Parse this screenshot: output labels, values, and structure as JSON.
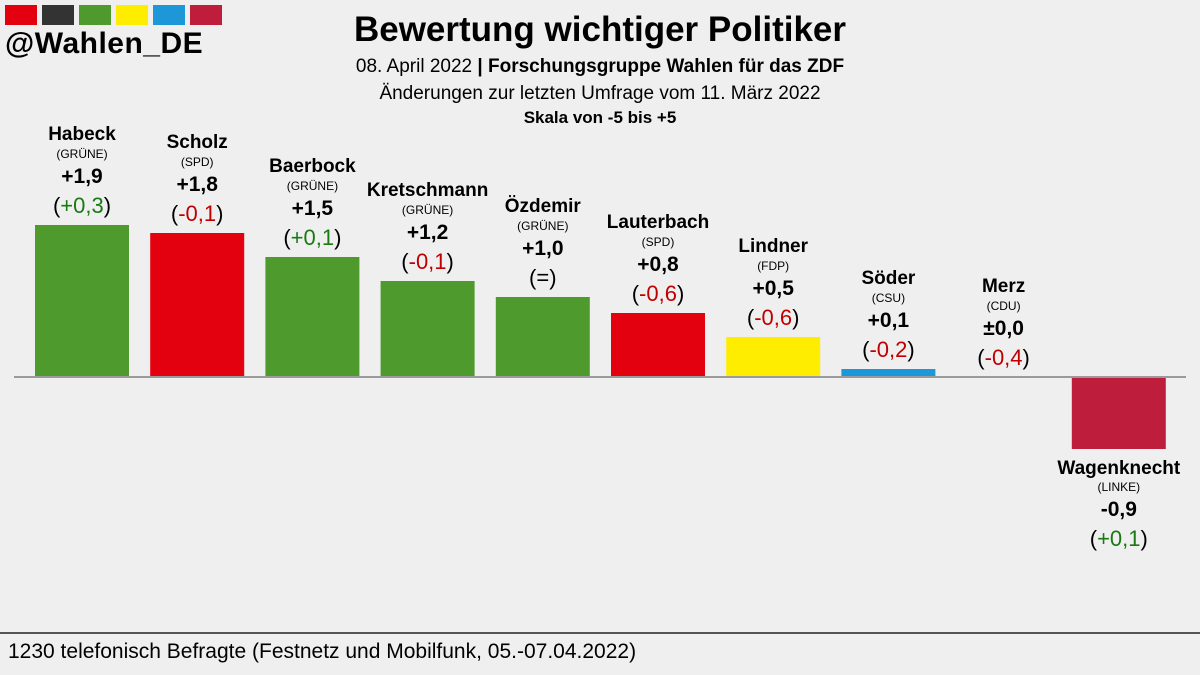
{
  "header": {
    "handle": "@Wahlen_DE",
    "strip_colors": [
      "#e3000f",
      "#333333",
      "#4f9a2d",
      "#ffed00",
      "#1d97d8",
      "#be1e3c"
    ]
  },
  "title": "Bewertung wichtiger Politiker",
  "subtitle_date": "08. April 2022",
  "subtitle_sep": "|",
  "subtitle_source": "Forschungsgruppe Wahlen für das ZDF",
  "change_note": "Änderungen zur letzten Umfrage vom 11. März 2022",
  "scale_note": "Skala von -5 bis +5",
  "footer": "1230 telefonisch Befragte (Festnetz und Mobilfunk, 05.-07.04.2022)",
  "chart_data": {
    "type": "bar",
    "title": "Bewertung wichtiger Politiker",
    "ylim": [
      -5,
      5
    ],
    "categories": [
      "Habeck",
      "Scholz",
      "Baerbock",
      "Kretschmann",
      "Özdemir",
      "Lauterbach",
      "Lindner",
      "Söder",
      "Merz",
      "Wagenknecht"
    ],
    "parties": [
      "(GRÜNE)",
      "(SPD)",
      "(GRÜNE)",
      "(GRÜNE)",
      "(GRÜNE)",
      "(SPD)",
      "(FDP)",
      "(CSU)",
      "(CDU)",
      "(LINKE)"
    ],
    "values": [
      1.9,
      1.8,
      1.5,
      1.2,
      1.0,
      0.8,
      0.5,
      0.1,
      0.0,
      -0.9
    ],
    "value_labels": [
      "+1,9",
      "+1,8",
      "+1,5",
      "+1,2",
      "+1,0",
      "+0,8",
      "+0,5",
      "+0,1",
      "±0,0",
      "-0,9"
    ],
    "changes": [
      0.3,
      -0.1,
      0.1,
      -0.1,
      0.0,
      -0.6,
      -0.6,
      -0.2,
      -0.4,
      0.1
    ],
    "change_labels": [
      "(+0,3)",
      "(-0,1)",
      "(+0,1)",
      "(-0,1)",
      "(=)",
      "(-0,6)",
      "(-0,6)",
      "(-0,2)",
      "(-0,4)",
      "(+0,1)"
    ],
    "colors": [
      "#4f9a2d",
      "#e3000f",
      "#4f9a2d",
      "#4f9a2d",
      "#4f9a2d",
      "#e3000f",
      "#ffed00",
      "#1d97d8",
      "#333333",
      "#be1e3c"
    ],
    "change_colors": {
      "positive": "#1a7a12",
      "negative": "#c00000",
      "neutral": "#000000"
    }
  }
}
